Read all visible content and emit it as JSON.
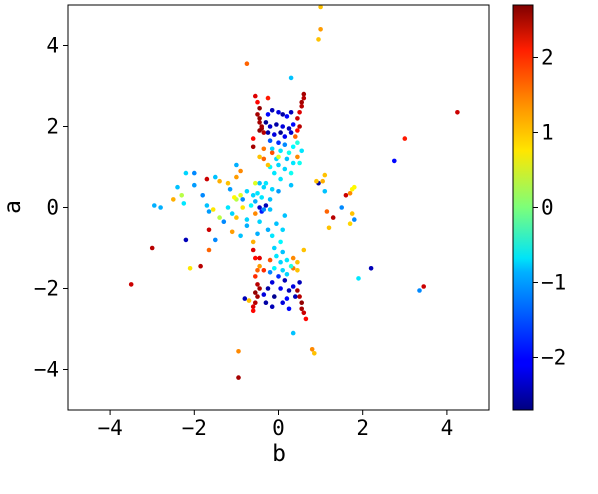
{
  "chart_data": {
    "type": "scatter",
    "xlabel": "b",
    "ylabel": "a",
    "xlim": [
      -5,
      5
    ],
    "ylim": [
      -5,
      5
    ],
    "xticks": [
      -4,
      -2,
      0,
      2,
      4
    ],
    "yticks": [
      -4,
      -2,
      0,
      2,
      4
    ],
    "xtick_labels": [
      "−4",
      "−2",
      "0",
      "2",
      "4"
    ],
    "ytick_labels": [
      "−4",
      "−2",
      "0",
      "2",
      "4"
    ],
    "grid": false,
    "colorbar": {
      "colormap": "jet",
      "vmin": -2.7,
      "vmax": 2.7,
      "ticks": [
        -2,
        -1,
        0,
        1,
        2
      ],
      "tick_labels": [
        "−2",
        "−1",
        "0",
        "1",
        "2"
      ]
    },
    "points": [
      [
        1.0,
        4.95,
        1.0
      ],
      [
        1.0,
        4.4,
        1.2
      ],
      [
        0.95,
        4.15,
        1.0
      ],
      [
        0.3,
        3.2,
        -1.0
      ],
      [
        -0.75,
        3.55,
        1.5
      ],
      [
        -0.25,
        2.7,
        1.9
      ],
      [
        0.6,
        2.8,
        2.5
      ],
      [
        0.6,
        2.7,
        2.4
      ],
      [
        0.55,
        2.6,
        2.5
      ],
      [
        0.55,
        2.5,
        2.4
      ],
      [
        -0.55,
        2.75,
        2.2
      ],
      [
        -0.5,
        2.6,
        2.0
      ],
      [
        -0.45,
        2.45,
        2.6
      ],
      [
        -0.5,
        2.3,
        2.5
      ],
      [
        -0.45,
        2.2,
        2.6
      ],
      [
        -0.45,
        2.1,
        2.5
      ],
      [
        -0.4,
        1.95,
        2.6
      ],
      [
        -0.35,
        1.85,
        2.4
      ],
      [
        -0.45,
        1.9,
        2.6
      ],
      [
        -0.4,
        2.0,
        2.5
      ],
      [
        0.5,
        2.35,
        2.2
      ],
      [
        0.45,
        2.2,
        2.3
      ],
      [
        0.5,
        2.0,
        2.4
      ],
      [
        0.45,
        1.9,
        2.0
      ],
      [
        0.4,
        1.75,
        1.5
      ],
      [
        -0.25,
        2.3,
        -2.0
      ],
      [
        -0.15,
        2.4,
        -2.4
      ],
      [
        0.0,
        2.35,
        -2.2
      ],
      [
        0.1,
        2.3,
        -2.5
      ],
      [
        0.2,
        2.25,
        -2.0
      ],
      [
        0.3,
        2.35,
        -2.4
      ],
      [
        -0.3,
        2.1,
        -2.6
      ],
      [
        -0.2,
        2.0,
        -2.3
      ],
      [
        -0.05,
        2.05,
        -2.5
      ],
      [
        0.1,
        2.0,
        -2.2
      ],
      [
        0.25,
        1.95,
        -2.4
      ],
      [
        0.35,
        2.05,
        -2.0
      ],
      [
        -0.25,
        1.85,
        -2.5
      ],
      [
        -0.1,
        1.8,
        -2.2
      ],
      [
        0.05,
        1.85,
        -2.6
      ],
      [
        0.15,
        1.75,
        -2.1
      ],
      [
        0.3,
        1.85,
        -2.3
      ],
      [
        -0.2,
        1.65,
        -1.6
      ],
      [
        0.0,
        1.6,
        -1.8
      ],
      [
        0.15,
        1.55,
        -1.3
      ],
      [
        0.35,
        1.5,
        -0.7
      ],
      [
        -0.15,
        1.45,
        -0.9
      ],
      [
        0.05,
        1.4,
        -0.8
      ],
      [
        0.25,
        1.35,
        -0.6
      ],
      [
        -0.05,
        1.2,
        -0.9
      ],
      [
        0.2,
        1.2,
        -1.0
      ],
      [
        0.35,
        1.1,
        -0.8
      ],
      [
        0.0,
        1.05,
        -0.9
      ],
      [
        -0.2,
        1.0,
        -0.7
      ],
      [
        0.15,
        0.95,
        -0.9
      ],
      [
        -0.1,
        0.85,
        -0.8
      ],
      [
        0.3,
        0.85,
        -0.6
      ],
      [
        0.05,
        0.7,
        -0.8
      ],
      [
        -0.35,
        1.45,
        1.4
      ],
      [
        -0.45,
        1.25,
        1.0
      ],
      [
        -0.35,
        1.2,
        1.5
      ],
      [
        -0.15,
        1.35,
        1.6
      ],
      [
        0.45,
        1.25,
        1.3
      ],
      [
        -0.25,
        1.05,
        1.0
      ],
      [
        -0.45,
        0.6,
        -1.0
      ],
      [
        -0.35,
        0.5,
        -0.9
      ],
      [
        -0.5,
        0.35,
        -0.8
      ],
      [
        -0.6,
        0.3,
        -0.9
      ],
      [
        -0.4,
        0.25,
        -0.8
      ],
      [
        -0.55,
        0.15,
        -1.1
      ],
      [
        -0.65,
        0.05,
        -0.7
      ],
      [
        -0.45,
        0.0,
        -2.3
      ],
      [
        -0.75,
        0.4,
        -0.9
      ],
      [
        -0.85,
        0.2,
        -1.3
      ],
      [
        -0.85,
        0.0,
        0.8
      ],
      [
        -0.55,
        -0.15,
        1.3
      ],
      [
        -0.75,
        -0.3,
        -0.9
      ],
      [
        -0.45,
        -0.35,
        -0.9
      ],
      [
        -0.55,
        0.6,
        0.5
      ],
      [
        -0.3,
        0.6,
        -0.8
      ],
      [
        -0.3,
        0.05,
        -2.4
      ],
      [
        -0.2,
        -0.05,
        -1.0
      ],
      [
        -0.4,
        -0.1,
        -1.9
      ],
      [
        -0.9,
        0.3,
        0.5
      ],
      [
        -1.0,
        0.2,
        0.3
      ],
      [
        -1.0,
        0.75,
        1.2
      ],
      [
        -1.0,
        1.05,
        -1.1
      ],
      [
        -0.9,
        0.9,
        1.3
      ],
      [
        -1.2,
        0.6,
        1.0
      ],
      [
        -1.15,
        0.45,
        -1.2
      ],
      [
        -1.5,
        0.75,
        -1.0
      ],
      [
        -1.4,
        0.65,
        1.1
      ],
      [
        -1.7,
        0.7,
        2.3
      ],
      [
        -1.8,
        0.3,
        -1.3
      ],
      [
        -1.7,
        0.05,
        -1.0
      ],
      [
        -1.65,
        -0.1,
        -1.2
      ],
      [
        -1.55,
        -0.05,
        0.8
      ],
      [
        -1.4,
        -0.25,
        0.3
      ],
      [
        -1.3,
        -0.35,
        -1.3
      ],
      [
        -1.1,
        -0.15,
        -0.9
      ],
      [
        -1.0,
        -0.25,
        1.0
      ],
      [
        -1.1,
        -0.6,
        1.2
      ],
      [
        -0.9,
        -0.7,
        -1.0
      ],
      [
        -0.6,
        -0.85,
        1.1
      ],
      [
        -0.5,
        -0.65,
        -1.1
      ],
      [
        -0.75,
        -0.45,
        -1.1
      ],
      [
        -1.65,
        -0.55,
        2.3
      ],
      [
        -1.5,
        -0.8,
        -1.3
      ],
      [
        -1.65,
        -1.05,
        1.5
      ],
      [
        -1.85,
        -1.45,
        2.4
      ],
      [
        -2.2,
        -0.8,
        -2.4
      ],
      [
        -2.1,
        -1.5,
        0.8
      ],
      [
        -2.0,
        0.85,
        -1.3
      ],
      [
        -2.2,
        0.85,
        -0.9
      ],
      [
        -2.4,
        0.5,
        -1.0
      ],
      [
        -2.3,
        0.3,
        0.3
      ],
      [
        -2.25,
        0.1,
        -0.8
      ],
      [
        -2.5,
        0.2,
        1.1
      ],
      [
        -2.95,
        0.05,
        -1.1
      ],
      [
        -2.8,
        0.0,
        -1.1
      ],
      [
        -3.0,
        -1.0,
        2.4
      ],
      [
        -3.5,
        -1.9,
        2.3
      ],
      [
        -0.05,
        -0.4,
        -1.0
      ],
      [
        0.1,
        -0.55,
        -0.9
      ],
      [
        -0.15,
        -0.7,
        -0.8
      ],
      [
        0.05,
        -0.85,
        -0.7
      ],
      [
        -0.1,
        -1.0,
        -0.9
      ],
      [
        0.1,
        -1.1,
        -1.0
      ],
      [
        -0.05,
        -1.2,
        -0.8
      ],
      [
        0.05,
        -1.35,
        -0.9
      ],
      [
        -0.1,
        -1.5,
        -0.7
      ],
      [
        0.1,
        -1.55,
        -0.9
      ],
      [
        -0.2,
        -1.6,
        -1.3
      ],
      [
        0.2,
        -1.3,
        -0.8
      ],
      [
        0.0,
        -1.7,
        -1.8
      ],
      [
        -0.15,
        -1.85,
        -2.2
      ],
      [
        0.15,
        -1.8,
        -2.4
      ],
      [
        -0.25,
        -2.0,
        -2.5
      ],
      [
        0.05,
        -2.0,
        -2.1
      ],
      [
        0.25,
        -2.05,
        -2.4
      ],
      [
        -0.35,
        -2.15,
        -2.2
      ],
      [
        -0.1,
        -2.2,
        -2.6
      ],
      [
        0.2,
        -2.25,
        -2.0
      ],
      [
        0.4,
        -2.2,
        -2.4
      ],
      [
        -0.3,
        -2.35,
        -2.5
      ],
      [
        0.1,
        -2.35,
        -2.2
      ],
      [
        -0.15,
        -2.45,
        -2.4
      ],
      [
        0.25,
        -2.5,
        -2.0
      ],
      [
        -0.8,
        -2.25,
        -2.4
      ],
      [
        -0.7,
        -2.3,
        1.0
      ],
      [
        0.5,
        -1.85,
        -2.4
      ],
      [
        0.35,
        -1.95,
        -2.2
      ],
      [
        -0.5,
        -1.9,
        2.4
      ],
      [
        -0.45,
        -2.0,
        2.5
      ],
      [
        -0.55,
        -2.1,
        2.6
      ],
      [
        -0.5,
        -2.2,
        2.5
      ],
      [
        -0.55,
        -2.35,
        2.4
      ],
      [
        -0.6,
        -2.45,
        2.2
      ],
      [
        -0.6,
        -2.55,
        2.0
      ],
      [
        0.45,
        -2.05,
        2.5
      ],
      [
        0.5,
        -2.2,
        2.4
      ],
      [
        0.55,
        -2.35,
        2.6
      ],
      [
        0.55,
        -2.5,
        2.5
      ],
      [
        0.6,
        -2.6,
        2.3
      ],
      [
        0.65,
        -2.75,
        2.0
      ],
      [
        -0.35,
        -1.55,
        1.8
      ],
      [
        -0.45,
        -1.45,
        1.2
      ],
      [
        -0.5,
        -1.55,
        1.5
      ],
      [
        -0.2,
        -1.3,
        1.6
      ],
      [
        0.35,
        -1.5,
        1.4
      ],
      [
        0.45,
        -1.35,
        1.0
      ],
      [
        0.2,
        -1.65,
        -0.9
      ],
      [
        0.3,
        -1.45,
        -0.5
      ],
      [
        0.35,
        -1.25,
        1.3
      ],
      [
        0.45,
        -1.55,
        1.0
      ],
      [
        0.35,
        -3.1,
        -1.0
      ],
      [
        -0.95,
        -3.55,
        1.3
      ],
      [
        -0.95,
        -4.2,
        2.5
      ],
      [
        0.8,
        -3.5,
        1.3
      ],
      [
        0.85,
        -3.6,
        1.0
      ],
      [
        0.95,
        0.6,
        -2.5
      ],
      [
        0.9,
        0.65,
        1.0
      ],
      [
        1.1,
        0.8,
        1.0
      ],
      [
        1.05,
        0.65,
        1.1
      ],
      [
        1.1,
        0.4,
        -1.0
      ],
      [
        1.15,
        -0.1,
        1.5
      ],
      [
        1.2,
        -0.5,
        1.0
      ],
      [
        1.3,
        -0.25,
        2.4
      ],
      [
        1.5,
        0.0,
        -1.3
      ],
      [
        1.6,
        0.3,
        2.3
      ],
      [
        1.7,
        0.35,
        1.3
      ],
      [
        1.75,
        0.45,
        0.7
      ],
      [
        1.75,
        -0.15,
        1.0
      ],
      [
        1.8,
        -0.3,
        -1.3
      ],
      [
        1.7,
        -0.4,
        0.9
      ],
      [
        1.8,
        0.5,
        0.7
      ],
      [
        1.9,
        -1.75,
        -0.8
      ],
      [
        2.2,
        -1.5,
        -2.4
      ],
      [
        2.75,
        1.15,
        -2.0
      ],
      [
        3.0,
        1.7,
        1.9
      ],
      [
        3.35,
        -2.05,
        -1.3
      ],
      [
        3.45,
        -1.95,
        2.3
      ],
      [
        4.25,
        2.35,
        2.3
      ],
      [
        0.45,
        1.6,
        -0.5
      ],
      [
        0.55,
        1.4,
        -0.8
      ],
      [
        0.5,
        1.1,
        -0.6
      ],
      [
        -0.6,
        1.7,
        2.0
      ],
      [
        -0.6,
        1.5,
        2.5
      ],
      [
        0.0,
        0.4,
        -1.2
      ],
      [
        -0.2,
        0.2,
        -1.0
      ],
      [
        0.15,
        -0.2,
        -1.0
      ],
      [
        -0.25,
        -0.55,
        -1.1
      ],
      [
        -1.2,
        0.0,
        -0.8
      ],
      [
        -2.0,
        0.55,
        -1.2
      ],
      [
        -0.45,
        -1.25,
        2.2
      ],
      [
        -0.55,
        -1.7,
        1.8
      ],
      [
        0.0,
        1.25,
        0.5
      ],
      [
        -0.35,
        -0.05,
        -1.3
      ],
      [
        -0.15,
        0.45,
        -0.9
      ],
      [
        0.3,
        0.55,
        -1.0
      ],
      [
        -0.6,
        -1.05,
        2.2
      ],
      [
        -0.55,
        -1.25,
        2.0
      ],
      [
        0.6,
        -1.05,
        1.0
      ],
      [
        -1.05,
        0.25,
        0.7
      ]
    ]
  }
}
